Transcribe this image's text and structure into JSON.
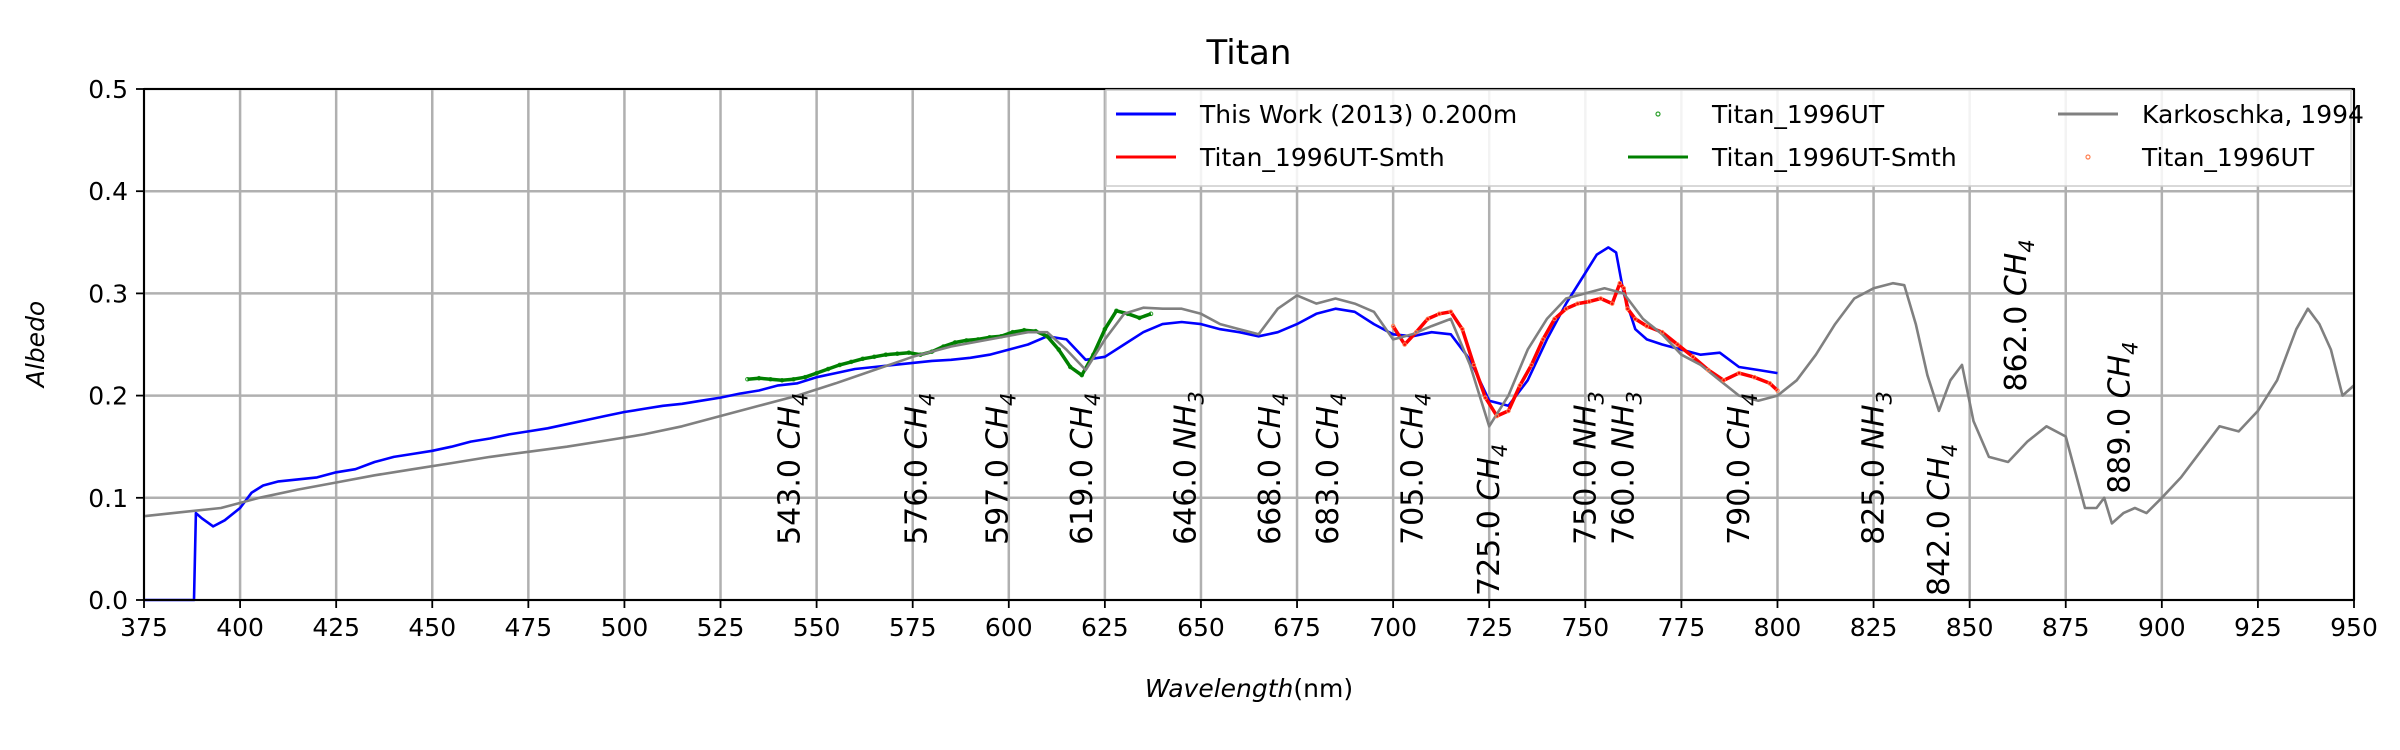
{
  "chart_data": {
    "type": "line",
    "title": "Titan",
    "xlabel": "Wavelength(nm)",
    "ylabel": "Albedo",
    "xlim": [
      375,
      950
    ],
    "ylim": [
      0.0,
      0.5
    ],
    "grid": true,
    "legend_position": "top-right",
    "xticks": [
      375,
      400,
      425,
      450,
      475,
      500,
      525,
      550,
      575,
      600,
      625,
      650,
      675,
      700,
      725,
      750,
      775,
      800,
      825,
      850,
      875,
      900,
      925,
      950
    ],
    "yticks": [
      0.0,
      0.1,
      0.2,
      0.3,
      0.4,
      0.5
    ],
    "xtick_labels": [
      "375",
      "400",
      "425",
      "450",
      "475",
      "500",
      "525",
      "550",
      "575",
      "600",
      "625",
      "650",
      "675",
      "700",
      "725",
      "750",
      "775",
      "800",
      "825",
      "850",
      "875",
      "900",
      "925",
      "950"
    ],
    "ytick_labels": [
      "0.0",
      "0.1",
      "0.2",
      "0.3",
      "0.4",
      "0.5"
    ],
    "series": [
      {
        "name": "This Work (2013) 0.200m",
        "kind": "line",
        "color": "#0000ff",
        "x": [
          375,
          388,
          388.5,
          390,
          393,
          396,
          400,
          403,
          406,
          410,
          415,
          420,
          425,
          430,
          435,
          440,
          445,
          450,
          455,
          460,
          465,
          470,
          475,
          480,
          485,
          490,
          495,
          500,
          505,
          510,
          515,
          520,
          525,
          530,
          535,
          540,
          545,
          550,
          555,
          560,
          565,
          570,
          575,
          580,
          585,
          590,
          595,
          600,
          605,
          610,
          615,
          620,
          625,
          630,
          635,
          640,
          645,
          650,
          655,
          660,
          665,
          670,
          675,
          680,
          685,
          690,
          695,
          700,
          705,
          710,
          715,
          720,
          725,
          730,
          735,
          740,
          745,
          750,
          753,
          756,
          758,
          760,
          763,
          766,
          770,
          775,
          780,
          785,
          790,
          795,
          800
        ],
        "y": [
          0.0,
          0.0,
          0.085,
          0.08,
          0.072,
          0.078,
          0.09,
          0.105,
          0.112,
          0.116,
          0.118,
          0.12,
          0.125,
          0.128,
          0.135,
          0.14,
          0.143,
          0.146,
          0.15,
          0.155,
          0.158,
          0.162,
          0.165,
          0.168,
          0.172,
          0.176,
          0.18,
          0.184,
          0.187,
          0.19,
          0.192,
          0.195,
          0.198,
          0.202,
          0.205,
          0.21,
          0.212,
          0.218,
          0.222,
          0.226,
          0.228,
          0.23,
          0.232,
          0.234,
          0.235,
          0.237,
          0.24,
          0.245,
          0.25,
          0.258,
          0.255,
          0.235,
          0.238,
          0.25,
          0.262,
          0.27,
          0.272,
          0.27,
          0.265,
          0.262,
          0.258,
          0.262,
          0.27,
          0.28,
          0.285,
          0.282,
          0.27,
          0.26,
          0.258,
          0.262,
          0.26,
          0.235,
          0.195,
          0.19,
          0.215,
          0.255,
          0.29,
          0.32,
          0.338,
          0.345,
          0.34,
          0.3,
          0.265,
          0.255,
          0.25,
          0.245,
          0.24,
          0.242,
          0.228,
          0.225,
          0.222
        ]
      },
      {
        "name": "Titan_1996UT-Smth",
        "kind": "line",
        "color": "#ff0000",
        "x": [
          700,
          703,
          706,
          709,
          712,
          715,
          718,
          721,
          724,
          727,
          730,
          733,
          736,
          739,
          742,
          745,
          748,
          751,
          754,
          757,
          759,
          760,
          761,
          763,
          766,
          770,
          774,
          778,
          782,
          786,
          790,
          794,
          798,
          800
        ],
        "y": [
          0.268,
          0.25,
          0.262,
          0.275,
          0.28,
          0.282,
          0.265,
          0.23,
          0.198,
          0.18,
          0.185,
          0.21,
          0.23,
          0.255,
          0.275,
          0.285,
          0.29,
          0.292,
          0.295,
          0.29,
          0.31,
          0.305,
          0.285,
          0.275,
          0.268,
          0.262,
          0.25,
          0.238,
          0.225,
          0.215,
          0.222,
          0.218,
          0.212,
          0.205
        ]
      },
      {
        "name": "Titan_1996UT",
        "kind": "scatter",
        "color": "#2ca02c",
        "x": [
          532,
          535,
          538,
          541,
          544,
          547,
          550,
          553,
          556,
          559,
          562,
          565,
          568,
          571,
          574,
          577,
          580,
          583,
          586,
          589,
          592,
          595,
          598,
          601,
          604,
          607,
          610,
          613,
          616,
          619,
          622,
          625,
          628,
          631,
          634,
          637
        ],
        "y": [
          0.216,
          0.217,
          0.216,
          0.215,
          0.216,
          0.218,
          0.222,
          0.226,
          0.23,
          0.233,
          0.236,
          0.238,
          0.24,
          0.241,
          0.242,
          0.24,
          0.243,
          0.248,
          0.252,
          0.254,
          0.255,
          0.257,
          0.258,
          0.262,
          0.264,
          0.263,
          0.258,
          0.245,
          0.228,
          0.22,
          0.24,
          0.265,
          0.283,
          0.28,
          0.276,
          0.28
        ]
      },
      {
        "name": "Titan_1996UT-Smth",
        "kind": "line",
        "color": "#008000",
        "x": [
          532,
          535,
          538,
          541,
          544,
          547,
          550,
          553,
          556,
          559,
          562,
          565,
          568,
          571,
          574,
          577,
          580,
          583,
          586,
          589,
          592,
          595,
          598,
          601,
          604,
          607,
          610,
          613,
          616,
          619,
          622,
          625,
          628,
          631,
          634,
          637
        ],
        "y": [
          0.216,
          0.217,
          0.216,
          0.215,
          0.216,
          0.218,
          0.222,
          0.226,
          0.23,
          0.233,
          0.236,
          0.238,
          0.24,
          0.241,
          0.242,
          0.24,
          0.243,
          0.248,
          0.252,
          0.254,
          0.255,
          0.257,
          0.258,
          0.262,
          0.264,
          0.263,
          0.258,
          0.245,
          0.228,
          0.22,
          0.24,
          0.265,
          0.283,
          0.28,
          0.276,
          0.28
        ]
      },
      {
        "name": "Karkoschka, 1994",
        "kind": "line",
        "color": "#808080",
        "x": [
          375,
          385,
          395,
          405,
          415,
          425,
          435,
          445,
          455,
          465,
          475,
          485,
          495,
          505,
          515,
          525,
          535,
          545,
          555,
          565,
          575,
          585,
          595,
          605,
          610,
          615,
          620,
          625,
          630,
          635,
          640,
          645,
          650,
          655,
          660,
          665,
          670,
          675,
          680,
          685,
          690,
          695,
          700,
          705,
          710,
          715,
          720,
          725,
          730,
          735,
          740,
          745,
          750,
          755,
          760,
          765,
          770,
          775,
          780,
          785,
          790,
          795,
          800,
          805,
          810,
          815,
          820,
          825,
          830,
          833,
          836,
          839,
          842,
          845,
          848,
          851,
          855,
          860,
          865,
          870,
          875,
          880,
          883,
          885,
          887,
          890,
          893,
          896,
          900,
          905,
          910,
          915,
          920,
          925,
          930,
          935,
          938,
          941,
          944,
          947,
          950
        ],
        "y": [
          0.082,
          0.086,
          0.09,
          0.1,
          0.108,
          0.115,
          0.122,
          0.128,
          0.134,
          0.14,
          0.145,
          0.15,
          0.156,
          0.162,
          0.17,
          0.18,
          0.19,
          0.2,
          0.212,
          0.225,
          0.238,
          0.248,
          0.255,
          0.262,
          0.262,
          0.245,
          0.225,
          0.255,
          0.28,
          0.286,
          0.285,
          0.285,
          0.28,
          0.27,
          0.265,
          0.26,
          0.285,
          0.298,
          0.29,
          0.295,
          0.29,
          0.282,
          0.255,
          0.26,
          0.268,
          0.275,
          0.23,
          0.17,
          0.2,
          0.245,
          0.275,
          0.295,
          0.3,
          0.305,
          0.3,
          0.275,
          0.26,
          0.24,
          0.23,
          0.215,
          0.2,
          0.195,
          0.2,
          0.215,
          0.24,
          0.27,
          0.295,
          0.305,
          0.31,
          0.308,
          0.27,
          0.22,
          0.185,
          0.215,
          0.23,
          0.175,
          0.14,
          0.135,
          0.155,
          0.17,
          0.16,
          0.09,
          0.09,
          0.1,
          0.075,
          0.085,
          0.09,
          0.085,
          0.1,
          0.12,
          0.145,
          0.17,
          0.165,
          0.185,
          0.215,
          0.265,
          0.285,
          0.27,
          0.245,
          0.2,
          0.21
        ]
      },
      {
        "name": "Titan_1996UT",
        "kind": "scatter",
        "color": "#ff7f50",
        "x": [
          700,
          703,
          706,
          709,
          712,
          715,
          718,
          721,
          724,
          727,
          730,
          733,
          736,
          739,
          742,
          745,
          748,
          751,
          754,
          757,
          759,
          760,
          761,
          763,
          766,
          770,
          774,
          778,
          782,
          786,
          790,
          794,
          798,
          800
        ],
        "y": [
          0.268,
          0.25,
          0.262,
          0.275,
          0.28,
          0.282,
          0.265,
          0.23,
          0.198,
          0.18,
          0.185,
          0.21,
          0.23,
          0.255,
          0.275,
          0.285,
          0.29,
          0.292,
          0.295,
          0.29,
          0.31,
          0.305,
          0.285,
          0.275,
          0.268,
          0.262,
          0.25,
          0.238,
          0.225,
          0.215,
          0.222,
          0.218,
          0.212,
          0.205
        ]
      }
    ],
    "legend": [
      {
        "label": "This Work (2013) 0.200m",
        "color": "#0000ff",
        "kind": "line"
      },
      {
        "label": "Titan_1996UT-Smth",
        "color": "#ff0000",
        "kind": "line"
      },
      {
        "label": "Titan_1996UT",
        "color": "#2ca02c",
        "kind": "scatter"
      },
      {
        "label": "Titan_1996UT-Smth",
        "color": "#008000",
        "kind": "line"
      },
      {
        "label": "Karkoschka, 1994",
        "color": "#808080",
        "kind": "line"
      },
      {
        "label": "Titan_1996UT",
        "color": "#ff7f50",
        "kind": "scatter"
      }
    ],
    "annotations": [
      {
        "x": 543.0,
        "y": 0.05,
        "value": "543.0",
        "species": "CH",
        "subscript": "4"
      },
      {
        "x": 576.0,
        "y": 0.05,
        "value": "576.0",
        "species": "CH",
        "subscript": "4"
      },
      {
        "x": 597.0,
        "y": 0.05,
        "value": "597.0",
        "species": "CH",
        "subscript": "4"
      },
      {
        "x": 619.0,
        "y": 0.05,
        "value": "619.0",
        "species": "CH",
        "subscript": "4"
      },
      {
        "x": 646.0,
        "y": 0.05,
        "value": "646.0",
        "species": "NH",
        "subscript": "3"
      },
      {
        "x": 668.0,
        "y": 0.05,
        "value": "668.0",
        "species": "CH",
        "subscript": "4"
      },
      {
        "x": 683.0,
        "y": 0.05,
        "value": "683.0",
        "species": "CH",
        "subscript": "4"
      },
      {
        "x": 705.0,
        "y": 0.05,
        "value": "705.0",
        "species": "CH",
        "subscript": "4"
      },
      {
        "x": 725.0,
        "y": 0.0,
        "value": "725.0",
        "species": "CH",
        "subscript": "4"
      },
      {
        "x": 750.0,
        "y": 0.05,
        "value": "750.0",
        "species": "NH",
        "subscript": "3"
      },
      {
        "x": 760.0,
        "y": 0.05,
        "value": "760.0",
        "species": "NH",
        "subscript": "3"
      },
      {
        "x": 790.0,
        "y": 0.05,
        "value": "790.0",
        "species": "CH",
        "subscript": "4"
      },
      {
        "x": 825.0,
        "y": 0.05,
        "value": "825.0",
        "species": "NH",
        "subscript": "3"
      },
      {
        "x": 842.0,
        "y": 0.0,
        "value": "842.0",
        "species": "CH",
        "subscript": "4"
      },
      {
        "x": 862.0,
        "y": 0.2,
        "value": "862.0",
        "species": "CH",
        "subscript": "4"
      },
      {
        "x": 889.0,
        "y": 0.1,
        "value": "889.0",
        "species": "CH",
        "subscript": "4"
      }
    ]
  }
}
